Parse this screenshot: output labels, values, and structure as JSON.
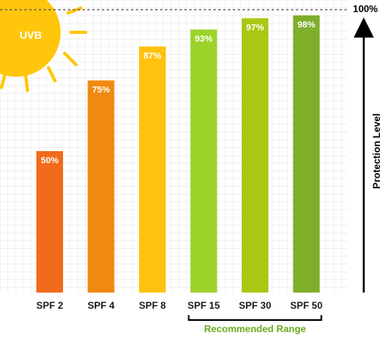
{
  "chart_data": {
    "type": "bar",
    "categories": [
      "SPF 2",
      "SPF 4",
      "SPF 8",
      "SPF 15",
      "SPF 30",
      "SPF 50"
    ],
    "values": [
      50,
      75,
      87,
      93,
      97,
      98
    ],
    "value_labels": [
      "50%",
      "75%",
      "87%",
      "93%",
      "97%",
      "98%"
    ],
    "colors": [
      "#f26a1b",
      "#f0890f",
      "#ffc20e",
      "#9bd32a",
      "#a9c813",
      "#7fae2b"
    ],
    "ylim": [
      0,
      100
    ],
    "ylabel": "Protection Level",
    "top_label": "100%",
    "grid": true,
    "annotations": {
      "sun": "UVB",
      "recommended_range": "Recommended Range",
      "recommended_categories": [
        "SPF 15",
        "SPF 30",
        "SPF 50"
      ]
    }
  }
}
